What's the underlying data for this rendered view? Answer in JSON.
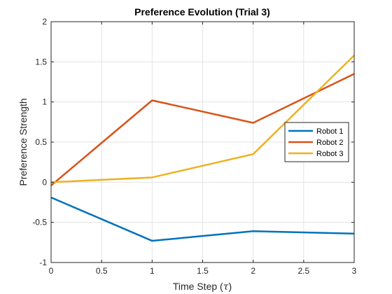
{
  "chart_data": {
    "type": "line",
    "title": "Preference Evolution (Trial 3)",
    "xlabel_prefix": "Time Step (",
    "xlabel_symbol": "τ",
    "xlabel_suffix": ")",
    "ylabel": "Preference Strength",
    "x": [
      0,
      1,
      2,
      3
    ],
    "xlim": [
      0,
      3
    ],
    "ylim": [
      -1,
      2
    ],
    "xticks": [
      0,
      0.5,
      1,
      1.5,
      2,
      2.5,
      3
    ],
    "xtick_labels": [
      "0",
      "0.5",
      "1",
      "1.5",
      "2",
      "2.5",
      "3"
    ],
    "yticks": [
      -1,
      -0.5,
      0,
      0.5,
      1,
      1.5,
      2
    ],
    "ytick_labels": [
      "-1",
      "-0.5",
      "0",
      "0.5",
      "1",
      "1.5",
      "2"
    ],
    "grid": true,
    "legend_position": "right",
    "series": [
      {
        "name": "Robot 1",
        "color": "#0072BD",
        "values": [
          -0.19,
          -0.73,
          -0.61,
          -0.64
        ]
      },
      {
        "name": "Robot 2",
        "color": "#D95319",
        "values": [
          -0.04,
          1.02,
          0.74,
          1.35
        ]
      },
      {
        "name": "Robot 3",
        "color": "#EDB120",
        "values": [
          0.0,
          0.06,
          0.35,
          1.58
        ]
      }
    ]
  }
}
